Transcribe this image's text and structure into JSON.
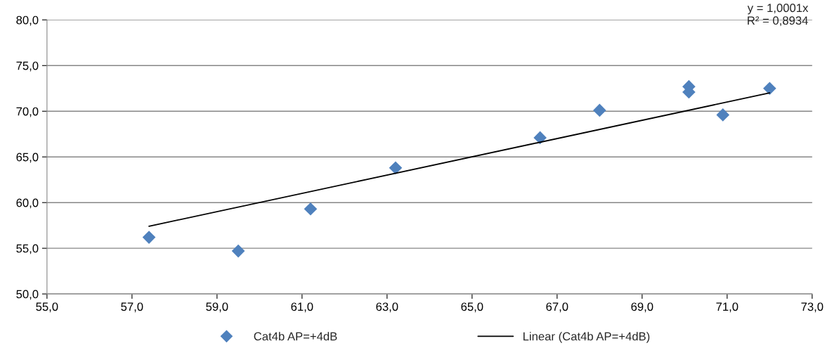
{
  "chart_data": {
    "type": "scatter",
    "series": [
      {
        "name": "Cat4b AP=+4dB",
        "color": "#4f81bd",
        "marker": "diamond",
        "x": [
          57.4,
          59.5,
          61.2,
          63.2,
          66.6,
          68.0,
          70.1,
          70.1,
          70.9,
          72.0
        ],
        "values": [
          56.2,
          54.7,
          59.3,
          63.8,
          67.1,
          70.1,
          72.7,
          72.1,
          69.6,
          72.5
        ]
      },
      {
        "name": "Linear (Cat4b AP=+4dB)",
        "type": "line",
        "color": "#000000",
        "marker": "none",
        "line_style": "solid",
        "x": [
          57.4,
          72.0
        ],
        "values": [
          57.41,
          72.01
        ]
      }
    ],
    "xlim": [
      55,
      73
    ],
    "xticks": [
      {
        "value": 55,
        "label": "55,0"
      },
      {
        "value": 57,
        "label": "57,0"
      },
      {
        "value": 59,
        "label": "59,0"
      },
      {
        "value": 61,
        "label": "61,0"
      },
      {
        "value": 63,
        "label": "63,0"
      },
      {
        "value": 65,
        "label": "65,0"
      },
      {
        "value": 67,
        "label": "67,0"
      },
      {
        "value": 69,
        "label": "69,0"
      },
      {
        "value": 71,
        "label": "71,0"
      },
      {
        "value": 73,
        "label": "73,0"
      }
    ],
    "ylim": [
      50,
      80
    ],
    "yticks": [
      {
        "value": 50,
        "label": "50,0"
      },
      {
        "value": 55,
        "label": "55,0"
      },
      {
        "value": 60,
        "label": "60,0"
      },
      {
        "value": 65,
        "label": "65,0"
      },
      {
        "value": 70,
        "label": "70,0"
      },
      {
        "value": 75,
        "label": "75,0"
      },
      {
        "value": 80,
        "label": "80,0"
      }
    ],
    "grid": "y",
    "legend": "bottom",
    "annotations": [
      "y = 1,0001x\nR² = 0,8934"
    ]
  }
}
